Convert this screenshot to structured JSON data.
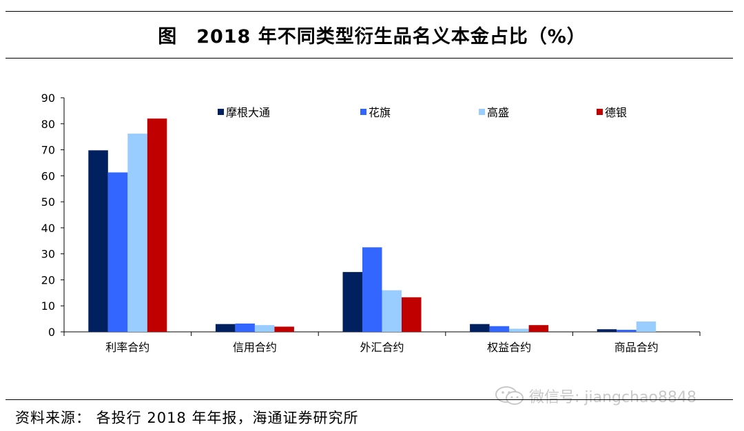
{
  "title": {
    "figure_label": "图",
    "text": "2018 年不同类型衍生品名义本金占比（%）"
  },
  "source_note": "资料来源：  各投行 2018 年年报，海通证券研究所",
  "watermark": {
    "icon": "wechat-icon",
    "text": "微信号: jiangchao8848",
    "color": "#c8c8c8"
  },
  "chart_data": {
    "type": "bar",
    "title": "2018 年不同类型衍生品名义本金占比（%）",
    "categories": [
      "利率合约",
      "信用合约",
      "外汇合约",
      "权益合约",
      "商品合约"
    ],
    "series": [
      {
        "name": "摩根大通",
        "color": "#002060",
        "values": [
          69.8,
          3.0,
          23.0,
          3.0,
          1.0
        ]
      },
      {
        "name": "花旗",
        "color": "#3366ff",
        "values": [
          61.3,
          3.2,
          32.5,
          2.2,
          0.8
        ]
      },
      {
        "name": "高盛",
        "color": "#99ccff",
        "values": [
          76.2,
          2.6,
          16.0,
          1.2,
          4.0
        ]
      },
      {
        "name": "德银",
        "color": "#c00000",
        "values": [
          82.0,
          2.0,
          13.3,
          2.6,
          0.0
        ]
      }
    ],
    "xlabel": "",
    "ylabel": "",
    "ylim": [
      0,
      90
    ],
    "yticks": [
      0,
      10,
      20,
      30,
      40,
      50,
      60,
      70,
      80,
      90
    ],
    "grid": false,
    "legend_position": "top"
  }
}
